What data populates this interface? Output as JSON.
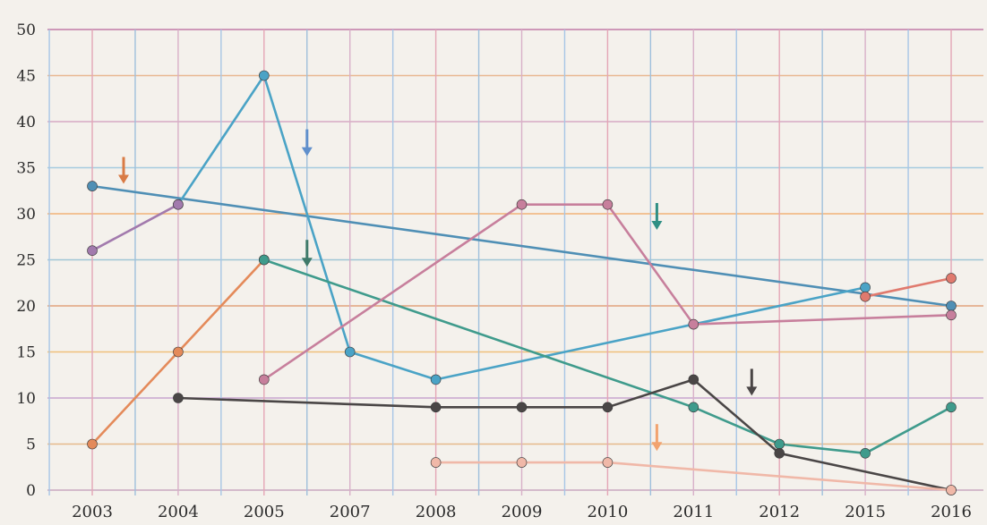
{
  "chart_data": {
    "type": "line",
    "title": "",
    "xlabel": "",
    "ylabel": "",
    "categories": [
      "2003",
      "2004",
      "2005",
      "2007",
      "2008",
      "2009",
      "2010",
      "2011",
      "2012",
      "2015",
      "2016"
    ],
    "yticks": [
      "0",
      "5",
      "10",
      "15",
      "20",
      "25",
      "30",
      "35",
      "40",
      "45",
      "50"
    ],
    "ylim": [
      0,
      50
    ],
    "grid": true,
    "series": [
      {
        "color": "#4f8fb5",
        "points": [
          [
            "2003",
            33
          ],
          [
            "2016",
            20
          ]
        ]
      },
      {
        "color": "#4aa3c6",
        "points": [
          [
            "2004",
            31
          ],
          [
            "2005",
            45
          ],
          [
            "2007",
            15
          ],
          [
            "2008",
            12
          ],
          [
            "2015",
            22
          ]
        ]
      },
      {
        "color": "#a27aad",
        "points": [
          [
            "2003",
            26
          ],
          [
            "2004",
            31
          ]
        ]
      },
      {
        "color": "#e48a5a",
        "points": [
          [
            "2003",
            5
          ],
          [
            "2004",
            15
          ],
          [
            "2005",
            25
          ]
        ]
      },
      {
        "color": "#3f9b8c",
        "points": [
          [
            "2005",
            25
          ],
          [
            "2011",
            9
          ],
          [
            "2012",
            5
          ],
          [
            "2015",
            4
          ],
          [
            "2016",
            9
          ]
        ]
      },
      {
        "color": "#c77f9c",
        "points": [
          [
            "2005",
            12
          ],
          [
            "2009",
            31
          ],
          [
            "2010",
            31
          ],
          [
            "2011",
            18
          ],
          [
            "2016",
            19
          ]
        ]
      },
      {
        "color": "#4a4646",
        "points": [
          [
            "2004",
            10
          ],
          [
            "2008",
            9
          ],
          [
            "2009",
            9
          ],
          [
            "2010",
            9
          ],
          [
            "2011",
            12
          ],
          [
            "2012",
            4
          ],
          [
            "2016",
            0
          ]
        ]
      },
      {
        "color": "#f0b8a8",
        "points": [
          [
            "2008",
            3
          ],
          [
            "2009",
            3
          ],
          [
            "2010",
            3
          ],
          [
            "2016",
            0
          ]
        ]
      },
      {
        "color": "#e07a6e",
        "points": [
          [
            "2015",
            21
          ],
          [
            "2016",
            23
          ]
        ]
      }
    ],
    "arrows": [
      {
        "color": "#d97b45",
        "x": "2003",
        "y": 35
      },
      {
        "color": "#5f8fcc",
        "x": "2005",
        "y": 38
      },
      {
        "color": "#3f7a6a",
        "x": "2005",
        "y": 26
      },
      {
        "color": "#2f8f84",
        "x": "2010",
        "y": 30
      },
      {
        "color": "#4a4646",
        "x": "2011",
        "y": 12
      },
      {
        "color": "#f2a36f",
        "x": "2010",
        "y": 6
      }
    ]
  }
}
